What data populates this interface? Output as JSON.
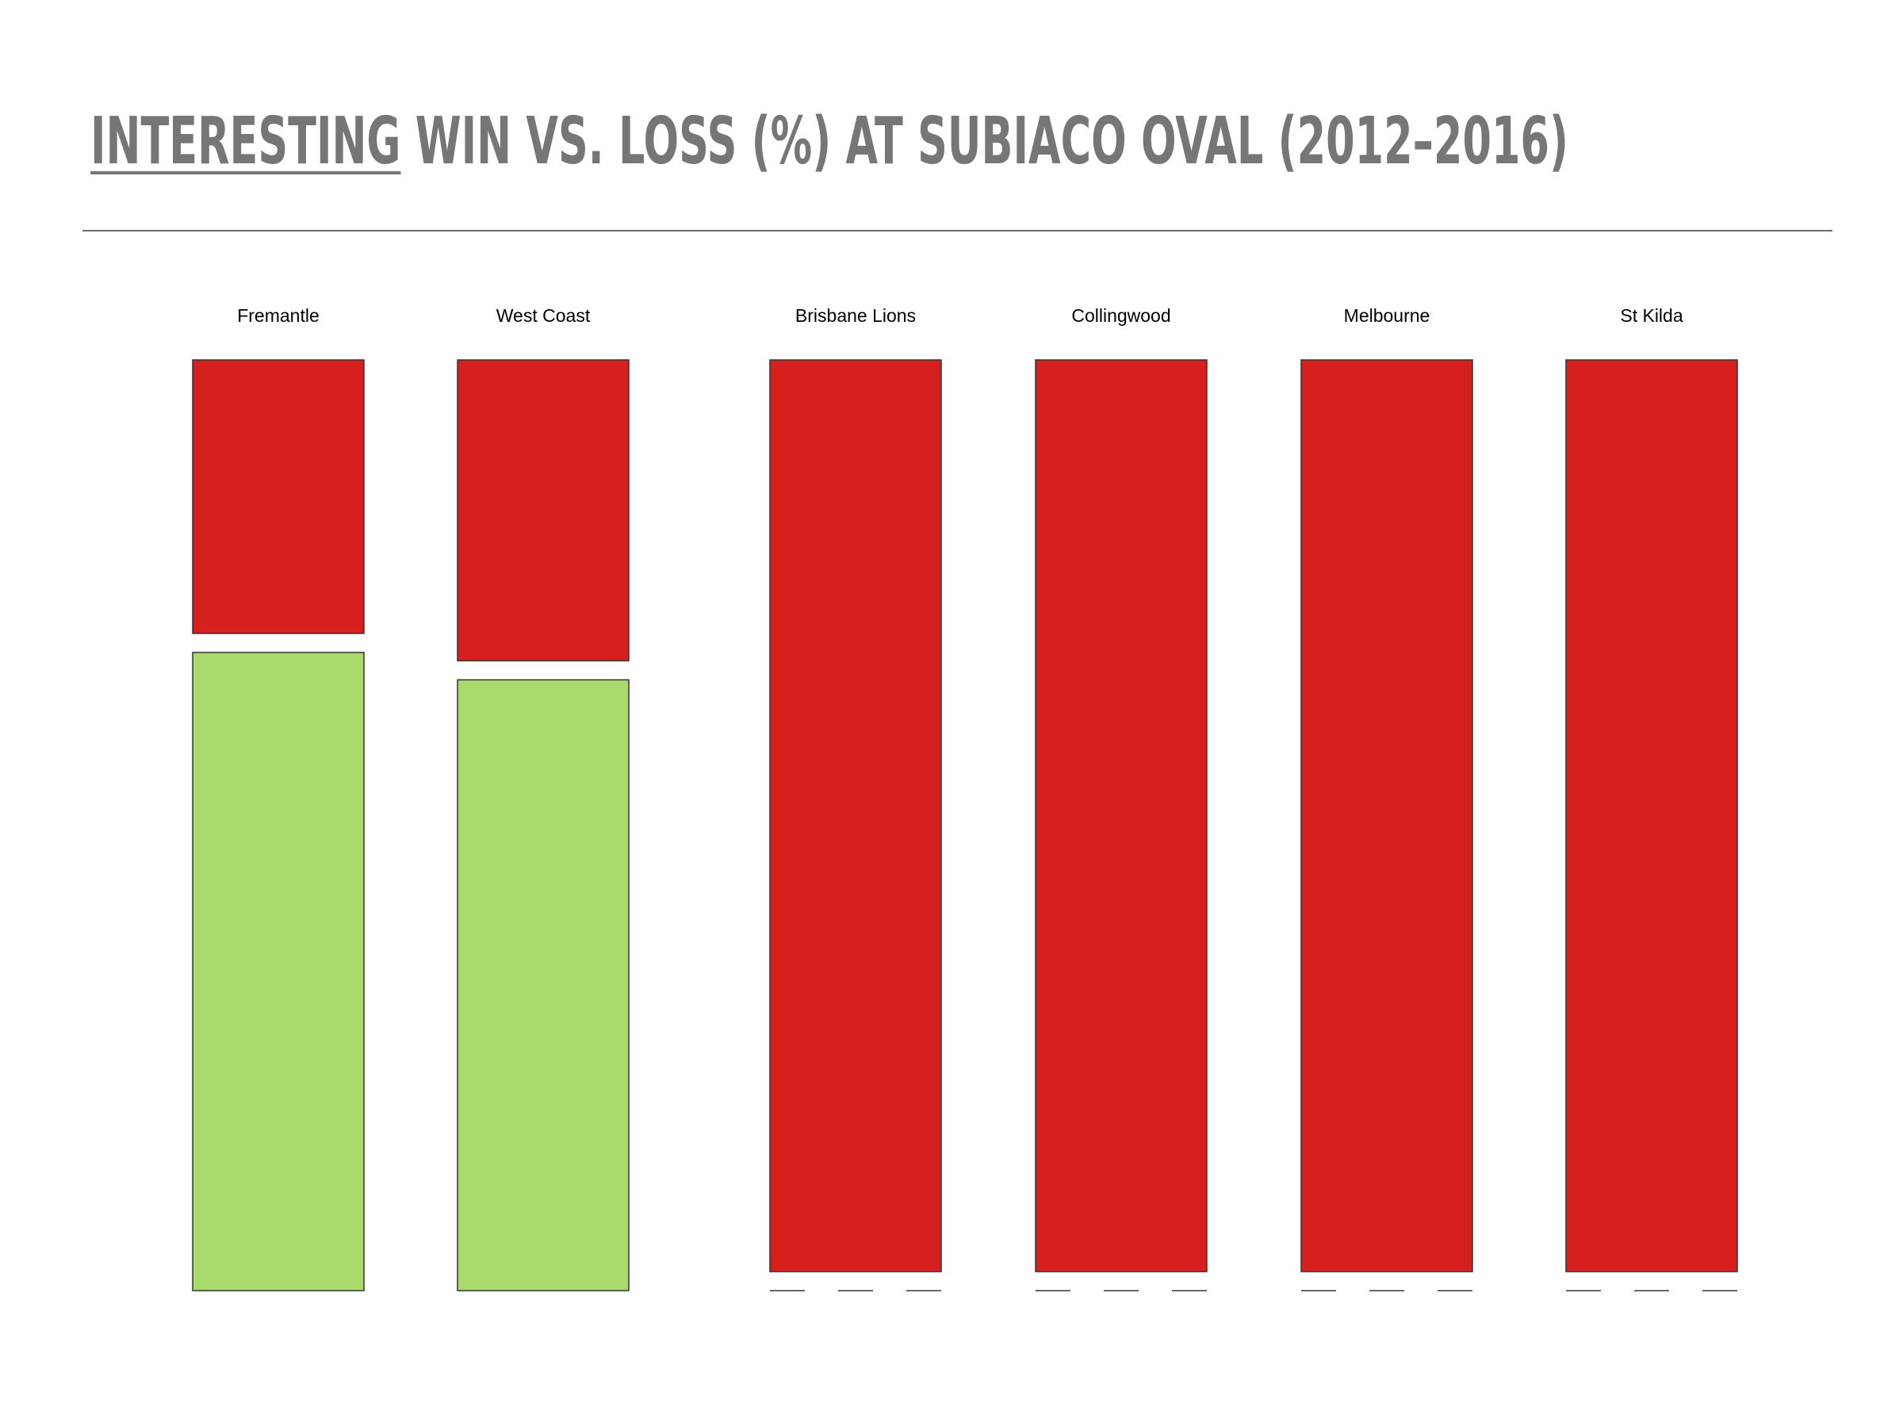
{
  "header": {
    "title_underlined": "INTERESTING",
    "title_rest": " WIN VS. LOSS (%) AT SUBIACO OVAL (2012–2016)"
  },
  "colors": {
    "win": "#a8d96b",
    "loss": "#d71f1d",
    "stroke": "#333333"
  },
  "chart_data": {
    "type": "bar",
    "stacked": true,
    "categories": [
      "Fremantle",
      "West Coast",
      "Brisbane Lions",
      "Collingwood",
      "Melbourne",
      "St Kilda"
    ],
    "series": [
      {
        "key": "loss",
        "values": [
          30,
          33,
          100,
          100,
          100,
          100
        ]
      },
      {
        "key": "win",
        "values": [
          70,
          67,
          0,
          0,
          0,
          0
        ]
      }
    ],
    "ylim": [
      0,
      100
    ],
    "grid": false,
    "legend": "none"
  }
}
